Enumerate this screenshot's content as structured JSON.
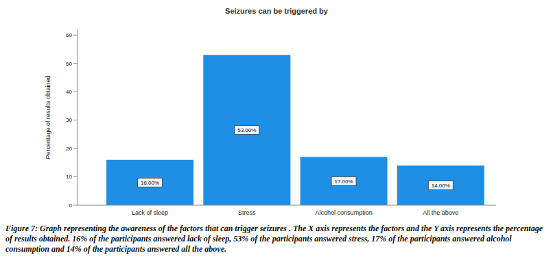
{
  "chart_data": {
    "type": "bar",
    "title": "Seizures can be triggered by",
    "y_label": "Percentage of results obtained",
    "categories": [
      "Lack of sleep",
      "Stress",
      "Alcohol consumption",
      "All the above"
    ],
    "values": [
      16,
      53,
      17,
      14
    ],
    "value_labels": [
      "16.00%",
      "53.00%",
      "17.00%",
      "14.00%"
    ],
    "data_labels": true,
    "color": "#1f8fe5",
    "ylim": [
      0,
      62
    ],
    "yticks": [
      0,
      10,
      20,
      30,
      40,
      50,
      60
    ],
    "grid": false,
    "caption": "Figure 7: Graph representing the awareness of the factors that can trigger seizures . The X axis represents the factors and the Y axis represents the percentage of results obtained. 16% of the participants answered lack of sleep, 53% of the participants answered stress, 17% of the participants answered alcohol consumption and 14% of the participants answered all the above."
  }
}
